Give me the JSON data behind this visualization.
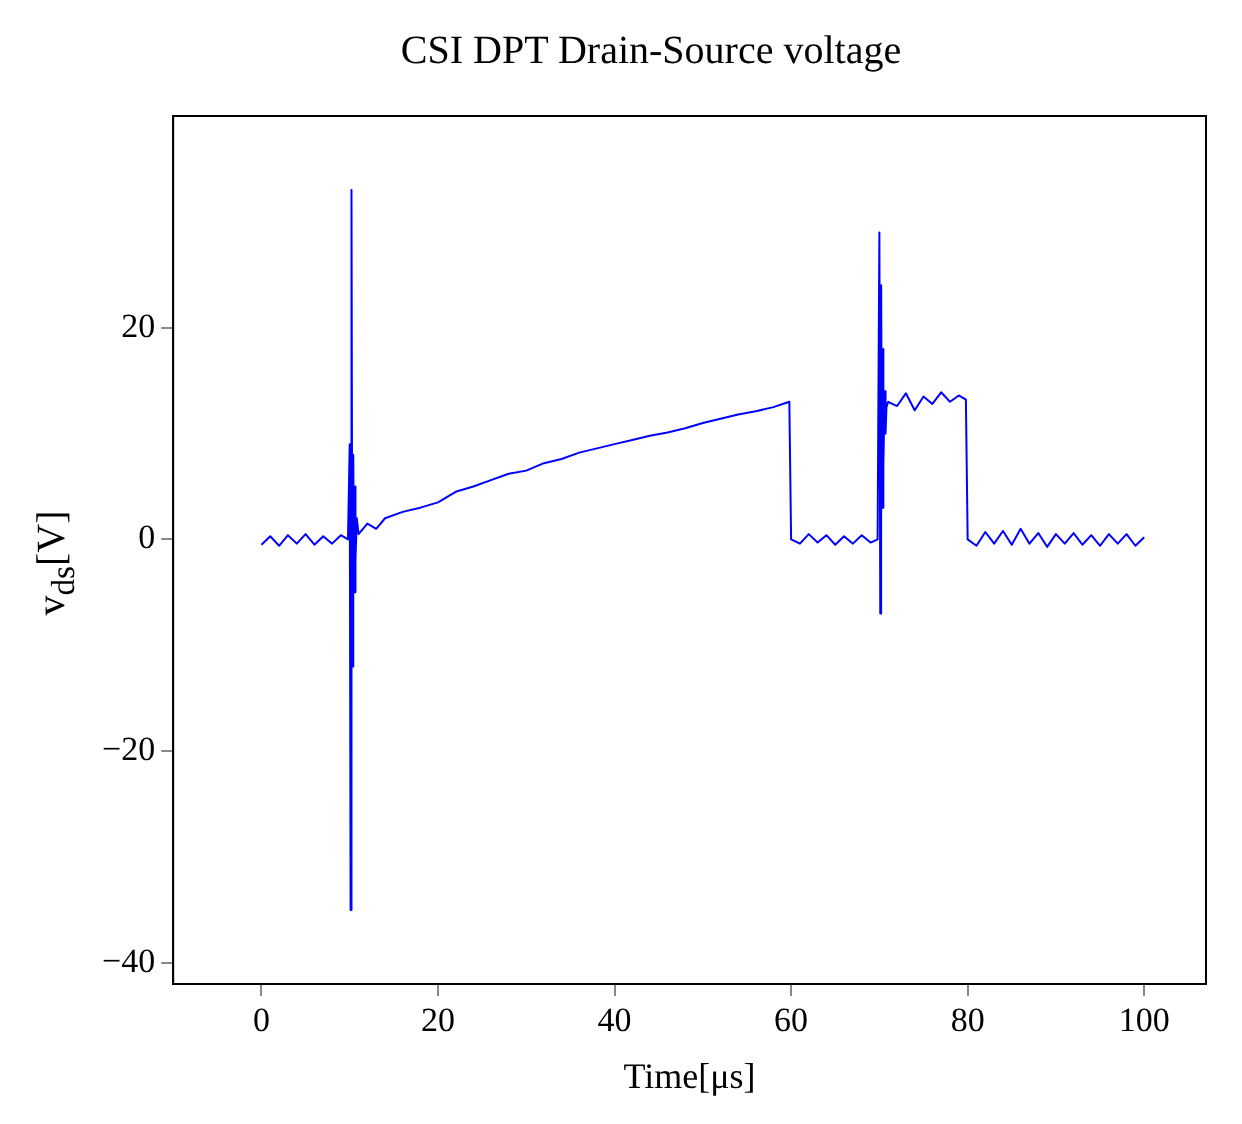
{
  "chart_data": {
    "type": "line",
    "title": "CSI DPT Drain-Source voltage",
    "xlabel": "Time[μs]",
    "ylabel": "v$_{ds}$[V]",
    "x": [
      0,
      1,
      2,
      3,
      4,
      5,
      6,
      7,
      8,
      9,
      9.8,
      10.0,
      10.1,
      10.2,
      10.3,
      10.4,
      10.5,
      10.6,
      10.7,
      10.8,
      11,
      12,
      13,
      14,
      16,
      18,
      20,
      22,
      24,
      26,
      28,
      30,
      32,
      34,
      36,
      38,
      40,
      42,
      44,
      46,
      48,
      50,
      52,
      54,
      56,
      58,
      59.8,
      60.0,
      61,
      62,
      63,
      64,
      65,
      66,
      67,
      68,
      69,
      69.8,
      70.0,
      70.1,
      70.2,
      70.3,
      70.4,
      70.5,
      70.6,
      70.7,
      70.8,
      71,
      72,
      73,
      74,
      75,
      76,
      77,
      78,
      79,
      79.8,
      80.0,
      81,
      82,
      83,
      84,
      85,
      86,
      87,
      88,
      89,
      90,
      91,
      92,
      93,
      94,
      95,
      96,
      97,
      98,
      99,
      100
    ],
    "series": [
      {
        "color": "#0000ff",
        "values": [
          -0.5,
          0.3,
          -0.6,
          0.4,
          -0.4,
          0.5,
          -0.5,
          0.3,
          -0.4,
          0.4,
          0,
          9,
          -35,
          33,
          -12,
          8,
          -5,
          5,
          -2,
          2,
          0.5,
          1.5,
          1,
          2,
          2.6,
          3,
          3.5,
          4.5,
          5,
          5.6,
          6.2,
          6.5,
          7.2,
          7.6,
          8.2,
          8.6,
          9,
          9.4,
          9.8,
          10.1,
          10.5,
          11,
          11.4,
          11.8,
          12.1,
          12.5,
          13,
          0,
          -0.4,
          0.5,
          -0.3,
          0.4,
          -0.5,
          0.3,
          -0.4,
          0.4,
          -0.3,
          0,
          29,
          -7,
          24,
          3,
          18,
          7,
          14,
          10,
          12.5,
          13,
          12.6,
          13.8,
          12.2,
          13.5,
          12.8,
          13.9,
          13,
          13.6,
          13.2,
          0,
          -0.6,
          0.7,
          -0.4,
          0.8,
          -0.5,
          1,
          -0.4,
          0.6,
          -0.7,
          0.5,
          -0.4,
          0.6,
          -0.5,
          0.4,
          -0.6,
          0.5,
          -0.4,
          0.5,
          -0.6,
          0.2
        ]
      }
    ],
    "xlim": [
      -10,
      107
    ],
    "ylim": [
      -42,
      40
    ],
    "xticks": [
      0,
      20,
      40,
      60,
      80,
      100
    ],
    "yticks": [
      -40,
      -20,
      0,
      20
    ],
    "grid": false,
    "legend": false,
    "marker": "none",
    "line_style": "solid"
  }
}
